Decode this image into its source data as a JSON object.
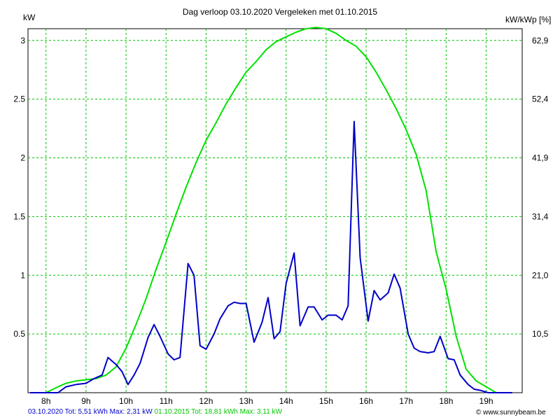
{
  "chart_data": {
    "type": "line",
    "title": "Dag  verloop 03.10.2020   Vergeleken met 01.10.2015",
    "ylabel_left": "kW",
    "ylabel_right": "kW/kWp [%]",
    "x_ticks": [
      "8h",
      "9h",
      "10h",
      "11h",
      "12h",
      "13h",
      "14h",
      "15h",
      "16h",
      "17h",
      "18h",
      "19h"
    ],
    "y_ticks_left": [
      "0.5",
      "1",
      "1.5",
      "2",
      "2.5",
      "3"
    ],
    "y_ticks_right": [
      "10,5",
      "21,0",
      "31,4",
      "41,9",
      "52,4",
      "62,9"
    ],
    "xlim": [
      7.55,
      19.9
    ],
    "ylim": [
      0,
      3.1
    ],
    "grid": true,
    "colors": {
      "blue": "#0000c8",
      "green": "#00e100",
      "grid": "#00c000"
    },
    "series": [
      {
        "name": "03.10.2020",
        "color": "#0000c8",
        "x": [
          7.6,
          7.8,
          8.0,
          8.3,
          8.5,
          8.75,
          9.0,
          9.2,
          9.4,
          9.55,
          9.75,
          9.9,
          10.05,
          10.2,
          10.35,
          10.55,
          10.7,
          10.85,
          11.05,
          11.2,
          11.35,
          11.55,
          11.7,
          11.85,
          12.0,
          12.2,
          12.35,
          12.55,
          12.7,
          12.85,
          13.0,
          13.2,
          13.4,
          13.55,
          13.7,
          13.85,
          14.0,
          14.2,
          14.35,
          14.55,
          14.7,
          14.9,
          15.05,
          15.25,
          15.4,
          15.55,
          15.7,
          15.85,
          16.05,
          16.2,
          16.35,
          16.55,
          16.7,
          16.85,
          17.05,
          17.2,
          17.35,
          17.55,
          17.7,
          17.85,
          18.05,
          18.2,
          18.35,
          18.55,
          18.7,
          18.85,
          19.05,
          19.2,
          19.35,
          19.65
        ],
        "y": [
          0,
          0,
          0,
          0,
          0.05,
          0.07,
          0.08,
          0.12,
          0.15,
          0.3,
          0.24,
          0.18,
          0.07,
          0.15,
          0.25,
          0.47,
          0.58,
          0.48,
          0.33,
          0.28,
          0.3,
          1.1,
          1.0,
          0.4,
          0.37,
          0.5,
          0.63,
          0.74,
          0.77,
          0.76,
          0.76,
          0.43,
          0.6,
          0.81,
          0.46,
          0.52,
          0.93,
          1.19,
          0.57,
          0.73,
          0.73,
          0.62,
          0.66,
          0.66,
          0.62,
          0.74,
          2.31,
          1.15,
          0.61,
          0.87,
          0.79,
          0.85,
          1.01,
          0.89,
          0.5,
          0.38,
          0.35,
          0.34,
          0.35,
          0.48,
          0.29,
          0.28,
          0.15,
          0.07,
          0.03,
          0.02,
          0,
          0,
          0,
          0
        ]
      },
      {
        "name": "01.10.2015",
        "color": "#00e100",
        "x": [
          7.6,
          8.0,
          8.3,
          8.5,
          8.75,
          9.0,
          9.25,
          9.5,
          9.75,
          10.0,
          10.25,
          10.5,
          10.75,
          11.0,
          11.25,
          11.5,
          11.75,
          12.0,
          12.25,
          12.5,
          12.75,
          13.0,
          13.25,
          13.5,
          13.75,
          14.0,
          14.25,
          14.5,
          14.75,
          15.0,
          15.25,
          15.5,
          15.75,
          16.0,
          16.25,
          16.5,
          16.75,
          17.0,
          17.25,
          17.5,
          17.75,
          18.0,
          18.25,
          18.5,
          18.75,
          19.0,
          19.25,
          19.65
        ],
        "y": [
          0,
          0,
          0.05,
          0.08,
          0.1,
          0.11,
          0.12,
          0.15,
          0.22,
          0.38,
          0.58,
          0.8,
          1.05,
          1.28,
          1.52,
          1.75,
          1.96,
          2.15,
          2.3,
          2.46,
          2.6,
          2.73,
          2.82,
          2.92,
          2.99,
          3.03,
          3.07,
          3.1,
          3.11,
          3.1,
          3.06,
          3.0,
          2.95,
          2.86,
          2.73,
          2.58,
          2.42,
          2.24,
          2.03,
          1.72,
          1.2,
          0.88,
          0.48,
          0.2,
          0.1,
          0.05,
          0,
          0
        ]
      }
    ]
  },
  "footer": {
    "blue_text": "03.10.2020 Tot: 5,51 kWh Max: 2,31 kW",
    "green_text": "01.10.2015 Tot: 18,81 kWh Max: 3,11 kW",
    "brand": "© www.sunnybeam.be"
  }
}
